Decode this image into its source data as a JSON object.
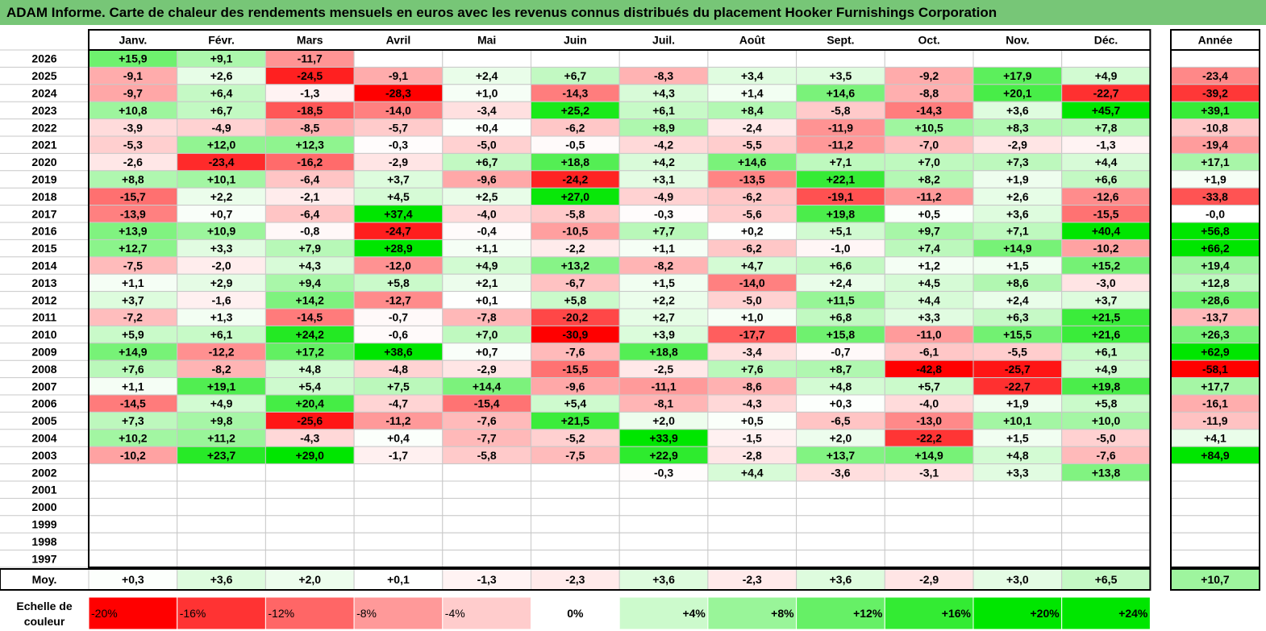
{
  "title": "ADAM Informe. Carte de chaleur des rendements mensuels en euros avec les revenus connus distribués du placement Hooker Furnishings Corporation",
  "colors": {
    "title_bg": "#77c677",
    "neg_max": "#ff0000",
    "pos_max": "#00e600",
    "neutral": "#ffffff",
    "grid": "#c8c8c8",
    "frame": "#000000"
  },
  "chart_data": {
    "type": "heatmap",
    "months": [
      "Janv.",
      "Févr.",
      "Mars",
      "Avril",
      "Mai",
      "Juin",
      "Juil.",
      "Août",
      "Sept.",
      "Oct.",
      "Nov.",
      "Déc."
    ],
    "year_header": "Année",
    "avg_label": "Moy.",
    "rows": [
      {
        "year": "2026",
        "values": [
          "+15,9",
          "+9,1",
          "-11,7",
          "",
          "",
          "",
          "",
          "",
          "",
          "",
          "",
          ""
        ],
        "annual": ""
      },
      {
        "year": "2025",
        "values": [
          "-9,1",
          "+2,6",
          "-24,5",
          "-9,1",
          "+2,4",
          "+6,7",
          "-8,3",
          "+3,4",
          "+3,5",
          "-9,2",
          "+17,9",
          "+4,9"
        ],
        "annual": "-23,4"
      },
      {
        "year": "2024",
        "values": [
          "-9,7",
          "+6,4",
          "-1,3",
          "-28,3",
          "+1,0",
          "-14,3",
          "+4,3",
          "+1,4",
          "+14,6",
          "-8,8",
          "+20,1",
          "-22,7"
        ],
        "annual": "-39,2"
      },
      {
        "year": "2023",
        "values": [
          "+10,8",
          "+6,7",
          "-18,5",
          "-14,0",
          "-3,4",
          "+25,2",
          "+6,1",
          "+8,4",
          "-5,8",
          "-14,3",
          "+3,6",
          "+45,7"
        ],
        "annual": "+39,1"
      },
      {
        "year": "2022",
        "values": [
          "-3,9",
          "-4,9",
          "-8,5",
          "-5,7",
          "+0,4",
          "-6,2",
          "+8,9",
          "-2,4",
          "-11,9",
          "+10,5",
          "+8,3",
          "+7,8"
        ],
        "annual": "-10,8"
      },
      {
        "year": "2021",
        "values": [
          "-5,3",
          "+12,0",
          "+12,3",
          "-0,3",
          "-5,0",
          "-0,5",
          "-4,2",
          "-5,5",
          "-11,2",
          "-7,0",
          "-2,9",
          "-1,3"
        ],
        "annual": "-19,4"
      },
      {
        "year": "2020",
        "values": [
          "-2,6",
          "-23,4",
          "-16,2",
          "-2,9",
          "+6,7",
          "+18,8",
          "+4,2",
          "+14,6",
          "+7,1",
          "+7,0",
          "+7,3",
          "+4,4"
        ],
        "annual": "+17,1"
      },
      {
        "year": "2019",
        "values": [
          "+8,8",
          "+10,1",
          "-6,4",
          "+3,7",
          "-9,6",
          "-24,2",
          "+3,1",
          "-13,5",
          "+22,1",
          "+8,2",
          "+1,9",
          "+6,6"
        ],
        "annual": "+1,9"
      },
      {
        "year": "2018",
        "values": [
          "-15,7",
          "+2,2",
          "-2,1",
          "+4,5",
          "+2,5",
          "+27,0",
          "-4,9",
          "-6,2",
          "-19,1",
          "-11,2",
          "+2,6",
          "-12,6"
        ],
        "annual": "-33,8"
      },
      {
        "year": "2017",
        "values": [
          "-13,9",
          "+0,7",
          "-6,4",
          "+37,4",
          "-4,0",
          "-5,8",
          "-0,3",
          "-5,6",
          "+19,8",
          "+0,5",
          "+3,6",
          "-15,5"
        ],
        "annual": "-0,0"
      },
      {
        "year": "2016",
        "values": [
          "+13,9",
          "+10,9",
          "-0,8",
          "-24,7",
          "-0,4",
          "-10,5",
          "+7,7",
          "+0,2",
          "+5,1",
          "+9,7",
          "+7,1",
          "+40,4"
        ],
        "annual": "+56,8"
      },
      {
        "year": "2015",
        "values": [
          "+12,7",
          "+3,3",
          "+7,9",
          "+28,9",
          "+1,1",
          "-2,2",
          "+1,1",
          "-6,2",
          "-1,0",
          "+7,4",
          "+14,9",
          "-10,2"
        ],
        "annual": "+66,2"
      },
      {
        "year": "2014",
        "values": [
          "-7,5",
          "-2,0",
          "+4,3",
          "-12,0",
          "+4,9",
          "+13,2",
          "-8,2",
          "+4,7",
          "+6,6",
          "+1,2",
          "+1,5",
          "+15,2"
        ],
        "annual": "+19,4"
      },
      {
        "year": "2013",
        "values": [
          "+1,1",
          "+2,9",
          "+9,4",
          "+5,8",
          "+2,1",
          "-6,7",
          "+1,5",
          "-14,0",
          "+2,4",
          "+4,5",
          "+8,6",
          "-3,0"
        ],
        "annual": "+12,8"
      },
      {
        "year": "2012",
        "values": [
          "+3,7",
          "-1,6",
          "+14,2",
          "-12,7",
          "+0,1",
          "+5,8",
          "+2,2",
          "-5,0",
          "+11,5",
          "+4,4",
          "+2,4",
          "+3,7"
        ],
        "annual": "+28,6"
      },
      {
        "year": "2011",
        "values": [
          "-7,2",
          "+1,3",
          "-14,5",
          "-0,7",
          "-7,8",
          "-20,2",
          "+2,7",
          "+1,0",
          "+6,8",
          "+3,3",
          "+6,3",
          "+21,5"
        ],
        "annual": "-13,7"
      },
      {
        "year": "2010",
        "values": [
          "+5,9",
          "+6,1",
          "+24,2",
          "-0,6",
          "+7,0",
          "-30,9",
          "+3,9",
          "-17,7",
          "+15,8",
          "-11,0",
          "+15,5",
          "+21,6"
        ],
        "annual": "+26,3"
      },
      {
        "year": "2009",
        "values": [
          "+14,9",
          "-12,2",
          "+17,2",
          "+38,6",
          "+0,7",
          "-7,6",
          "+18,8",
          "-3,4",
          "-0,7",
          "-6,1",
          "-5,5",
          "+6,1"
        ],
        "annual": "+62,9"
      },
      {
        "year": "2008",
        "values": [
          "+7,6",
          "-8,2",
          "+4,8",
          "-4,8",
          "-2,9",
          "-15,5",
          "-2,5",
          "+7,6",
          "+8,7",
          "-42,8",
          "-25,7",
          "+4,9"
        ],
        "annual": "-58,1"
      },
      {
        "year": "2007",
        "values": [
          "+1,1",
          "+19,1",
          "+5,4",
          "+7,5",
          "+14,4",
          "-9,6",
          "-11,1",
          "-8,6",
          "+4,8",
          "+5,7",
          "-22,7",
          "+19,8"
        ],
        "annual": "+17,7"
      },
      {
        "year": "2006",
        "values": [
          "-14,5",
          "+4,9",
          "+20,4",
          "-4,7",
          "-15,4",
          "+5,4",
          "-8,1",
          "-4,3",
          "+0,3",
          "-4,0",
          "+1,9",
          "+5,8"
        ],
        "annual": "-16,1"
      },
      {
        "year": "2005",
        "values": [
          "+7,3",
          "+9,8",
          "-25,6",
          "-11,2",
          "-7,6",
          "+21,5",
          "+2,0",
          "+0,5",
          "-6,5",
          "-13,0",
          "+10,1",
          "+10,0"
        ],
        "annual": "-11,9"
      },
      {
        "year": "2004",
        "values": [
          "+10,2",
          "+11,2",
          "-4,3",
          "+0,4",
          "-7,7",
          "-5,2",
          "+33,9",
          "-1,5",
          "+2,0",
          "-22,2",
          "+1,5",
          "-5,0"
        ],
        "annual": "+4,1"
      },
      {
        "year": "2003",
        "values": [
          "-10,2",
          "+23,7",
          "+29,0",
          "-1,7",
          "-5,8",
          "-7,5",
          "+22,9",
          "-2,8",
          "+13,7",
          "+14,9",
          "+4,8",
          "-7,6"
        ],
        "annual": "+84,9"
      },
      {
        "year": "2002",
        "values": [
          "",
          "",
          "",
          "",
          "",
          "",
          "-0,3",
          "+4,4",
          "-3,6",
          "-3,1",
          "+3,3",
          "+13,8"
        ],
        "annual": ""
      },
      {
        "year": "2001",
        "values": [
          "",
          "",
          "",
          "",
          "",
          "",
          "",
          "",
          "",
          "",
          "",
          ""
        ],
        "annual": ""
      },
      {
        "year": "2000",
        "values": [
          "",
          "",
          "",
          "",
          "",
          "",
          "",
          "",
          "",
          "",
          "",
          ""
        ],
        "annual": ""
      },
      {
        "year": "1999",
        "values": [
          "",
          "",
          "",
          "",
          "",
          "",
          "",
          "",
          "",
          "",
          "",
          ""
        ],
        "annual": ""
      },
      {
        "year": "1998",
        "values": [
          "",
          "",
          "",
          "",
          "",
          "",
          "",
          "",
          "",
          "",
          "",
          ""
        ],
        "annual": ""
      },
      {
        "year": "1997",
        "values": [
          "",
          "",
          "",
          "",
          "",
          "",
          "",
          "",
          "",
          "",
          "",
          ""
        ],
        "annual": ""
      }
    ],
    "averages": [
      "+0,3",
      "+3,6",
      "+2,0",
      "+0,1",
      "-1,3",
      "-2,3",
      "+3,6",
      "-2,3",
      "+3,6",
      "-2,9",
      "+3,0",
      "+6,5"
    ],
    "average_annual": "+10,7",
    "scale_label": "Echelle de couleur",
    "scale": [
      "-20%",
      "-16%",
      "-12%",
      "-8%",
      "-4%",
      "0%",
      "+4%",
      "+8%",
      "+12%",
      "+16%",
      "+20%",
      "+24%"
    ]
  }
}
